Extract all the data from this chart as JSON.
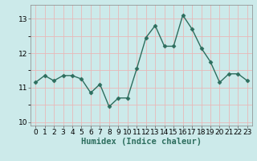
{
  "x": [
    0,
    1,
    2,
    3,
    4,
    5,
    6,
    7,
    8,
    9,
    10,
    11,
    12,
    13,
    14,
    15,
    16,
    17,
    18,
    19,
    20,
    21,
    22,
    23
  ],
  "y": [
    11.15,
    11.35,
    11.2,
    11.35,
    11.35,
    11.25,
    10.85,
    11.1,
    10.45,
    10.7,
    10.7,
    11.55,
    12.45,
    12.8,
    12.2,
    12.2,
    13.1,
    12.7,
    12.15,
    11.75,
    11.15,
    11.4,
    11.4,
    11.2
  ],
  "line_color": "#2d6e5e",
  "marker": "D",
  "markersize": 2.5,
  "linewidth": 1.0,
  "bg_color": "#cceaea",
  "grid_color": "#e8b8b8",
  "xlabel": "Humidex (Indice chaleur)",
  "ylim": [
    9.9,
    13.4
  ],
  "xlim": [
    -0.5,
    23.5
  ],
  "yticks": [
    10,
    11,
    12,
    13
  ],
  "xticks": [
    0,
    1,
    2,
    3,
    4,
    5,
    6,
    7,
    8,
    9,
    10,
    11,
    12,
    13,
    14,
    15,
    16,
    17,
    18,
    19,
    20,
    21,
    22,
    23
  ],
  "tick_fontsize": 6.5,
  "xlabel_fontsize": 7.5,
  "grid_linewidth": 0.6
}
